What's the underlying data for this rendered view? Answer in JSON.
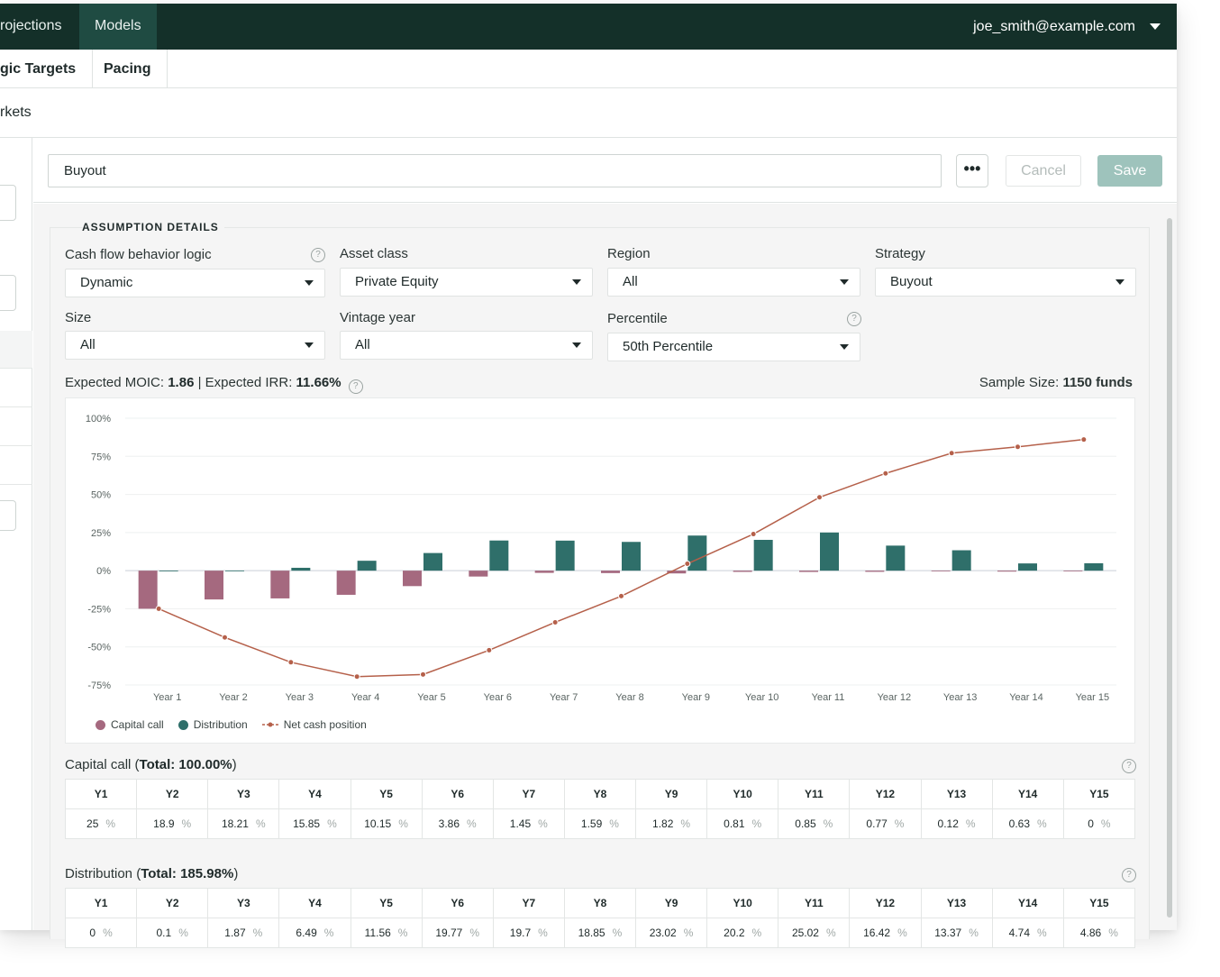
{
  "nav": {
    "tabs": [
      {
        "label": "rojections"
      },
      {
        "label": "Models"
      }
    ],
    "user_email": "joe_smith@example.com"
  },
  "subnav": {
    "tabs": [
      {
        "label": "gic Targets"
      },
      {
        "label": "Pacing"
      }
    ]
  },
  "breadcrumb": "rkets",
  "model": {
    "name": "Buyout",
    "more_label": "•••",
    "cancel_label": "Cancel",
    "save_label": "Save"
  },
  "assumptions": {
    "title": "ASSUMPTION DETAILS",
    "fields": {
      "cash_flow": {
        "label": "Cash flow behavior logic",
        "value": "Dynamic"
      },
      "asset_class": {
        "label": "Asset class",
        "value": "Private Equity"
      },
      "region": {
        "label": "Region",
        "value": "All"
      },
      "strategy": {
        "label": "Strategy",
        "value": "Buyout"
      },
      "size": {
        "label": "Size",
        "value": "All"
      },
      "vintage": {
        "label": "Vintage year",
        "value": "All"
      },
      "percentile": {
        "label": "Percentile",
        "value": "50th Percentile"
      }
    },
    "help_glyph": "?"
  },
  "stats": {
    "moic_label": "Expected MOIC: ",
    "moic_value": "1.86",
    "separator": " | ",
    "irr_label": "Expected IRR: ",
    "irr_value": "11.66%",
    "sample_label": "Sample Size: ",
    "sample_value": "1150 funds"
  },
  "chart_data": {
    "type": "bar",
    "categories": [
      "Year 1",
      "Year 2",
      "Year 3",
      "Year 4",
      "Year 5",
      "Year 6",
      "Year 7",
      "Year 8",
      "Year 9",
      "Year 10",
      "Year 11",
      "Year 12",
      "Year 13",
      "Year 14",
      "Year 15"
    ],
    "yticks": [
      "100%",
      "75%",
      "50%",
      "25%",
      "0%",
      "-25%",
      "-50%",
      "-75%"
    ],
    "ylim": [
      -75,
      100
    ],
    "grid": true,
    "legend_position": "bottom-left",
    "series": [
      {
        "name": "Capital call",
        "kind": "bar",
        "color": "#a5697f",
        "values": [
          -25,
          -18.9,
          -18.21,
          -15.85,
          -10.15,
          -3.86,
          -1.45,
          -1.59,
          -1.82,
          -0.81,
          -0.85,
          -0.77,
          -0.12,
          -0.63,
          0
        ]
      },
      {
        "name": "Distribution",
        "kind": "bar",
        "color": "#2f6f6a",
        "values": [
          0,
          0.1,
          1.87,
          6.49,
          11.56,
          19.77,
          19.7,
          18.85,
          23.02,
          20.2,
          25.02,
          16.42,
          13.37,
          4.74,
          4.86
        ]
      },
      {
        "name": "Net cash position",
        "kind": "line",
        "color": "#b5604a",
        "values": [
          -25,
          -43.8,
          -60.1,
          -69.5,
          -68.1,
          -52.2,
          -33.9,
          -16.7,
          4.5,
          24.0,
          48.1,
          63.8,
          77.1,
          81.2,
          86.0
        ]
      }
    ]
  },
  "capital_call": {
    "title": "Capital call",
    "total": "Total: 100.00%",
    "headers": [
      "Y1",
      "Y2",
      "Y3",
      "Y4",
      "Y5",
      "Y6",
      "Y7",
      "Y8",
      "Y9",
      "Y10",
      "Y11",
      "Y12",
      "Y13",
      "Y14",
      "Y15"
    ],
    "values": [
      "25",
      "18.9",
      "18.21",
      "15.85",
      "10.15",
      "3.86",
      "1.45",
      "1.59",
      "1.82",
      "0.81",
      "0.85",
      "0.77",
      "0.12",
      "0.63",
      "0"
    ],
    "unit": "%"
  },
  "distribution": {
    "title": "Distribution",
    "total": "Total: 185.98%",
    "headers": [
      "Y1",
      "Y2",
      "Y3",
      "Y4",
      "Y5",
      "Y6",
      "Y7",
      "Y8",
      "Y9",
      "Y10",
      "Y11",
      "Y12",
      "Y13",
      "Y14",
      "Y15"
    ],
    "values": [
      "0",
      "0.1",
      "1.87",
      "6.49",
      "11.56",
      "19.77",
      "19.7",
      "18.85",
      "23.02",
      "20.2",
      "25.02",
      "16.42",
      "13.37",
      "4.74",
      "4.86"
    ],
    "unit": "%"
  }
}
